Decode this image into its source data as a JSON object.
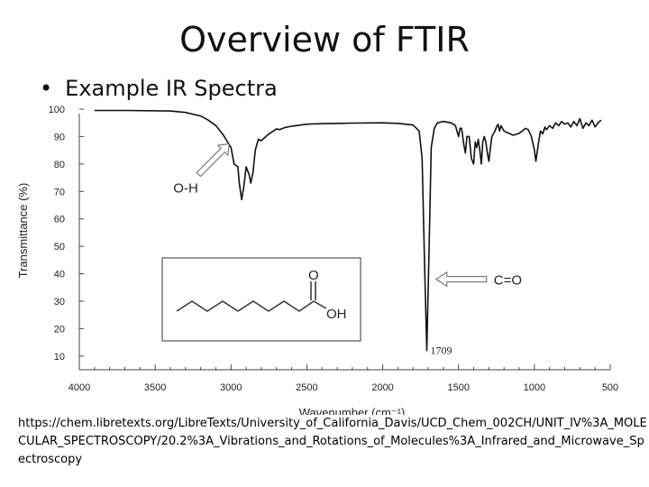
{
  "slide": {
    "title": "Overview of FTIR",
    "bullet": "Example IR Spectra",
    "source_url": "https://chem.libretexts.org/LibreTexts/University_of_California_Davis/UCD_Chem_002CH/UNIT_IV%3A_MOLECULAR_SPECTROSCOPY/20.2%3A_Vibrations_and_Rotations_of_Molecules%3A_Infrared_and_Microwave_Spectroscopy"
  },
  "chart_data": {
    "type": "line",
    "title": "",
    "xlabel": "Wavenumber (cm⁻¹)",
    "ylabel": "Transmittance (%)",
    "xlim": [
      4000,
      500
    ],
    "ylim": [
      5,
      100
    ],
    "x_reversed": true,
    "grid": false,
    "xticks": [
      4000,
      3500,
      3000,
      2500,
      2000,
      1500,
      1000,
      500
    ],
    "yticks": [
      100,
      90,
      80,
      70,
      60,
      50,
      40,
      30,
      20,
      10
    ],
    "series": [
      {
        "x": [
          3900,
          3700,
          3400,
          3300,
          3200,
          3150,
          3100,
          3050,
          3000,
          2980,
          2955,
          2945,
          2930,
          2915,
          2900,
          2880,
          2870,
          2855,
          2840,
          2820,
          2800,
          2750,
          2700,
          2680,
          2650,
          2600,
          2500,
          2400,
          2200,
          2000,
          1900,
          1800,
          1760,
          1740,
          1725,
          1709,
          1695,
          1680,
          1660,
          1640,
          1600,
          1550,
          1520,
          1500,
          1490,
          1480,
          1465,
          1455,
          1445,
          1430,
          1415,
          1400,
          1390,
          1380,
          1370,
          1360,
          1350,
          1340,
          1330,
          1320,
          1310,
          1300,
          1290,
          1280,
          1270,
          1260,
          1250,
          1240,
          1230,
          1220,
          1210,
          1200,
          1180,
          1160,
          1140,
          1120,
          1100,
          1080,
          1060,
          1040,
          1020,
          1000,
          990,
          975,
          960,
          945,
          930,
          920,
          900,
          880,
          860,
          840,
          820,
          800,
          780,
          760,
          740,
          720,
          700,
          680,
          660,
          640,
          620,
          600,
          580,
          560
        ],
        "y": [
          99.5,
          99.5,
          99.3,
          98.8,
          97.5,
          96.0,
          94.0,
          90.5,
          86.0,
          80.0,
          79.0,
          73.0,
          67.0,
          72.0,
          79.0,
          76.0,
          73.0,
          77.0,
          85.0,
          89.0,
          88.5,
          91.0,
          92.8,
          92.5,
          93.2,
          93.8,
          94.5,
          94.7,
          94.9,
          95.0,
          94.8,
          94.2,
          92.0,
          82.0,
          45.0,
          12.0,
          47.0,
          86.0,
          93.0,
          95.0,
          95.5,
          95.0,
          94.0,
          90.0,
          93.0,
          93.0,
          87.0,
          84.0,
          90.0,
          90.0,
          82.0,
          80.0,
          88.0,
          86.0,
          89.0,
          85.0,
          80.0,
          88.0,
          90.0,
          88.0,
          84.0,
          81.0,
          86.0,
          90.0,
          91.0,
          92.0,
          93.5,
          94.5,
          92.0,
          94.0,
          93.0,
          92.0,
          91.5,
          91.0,
          90.5,
          90.8,
          91.2,
          92.0,
          93.0,
          92.5,
          90.0,
          85.0,
          81.0,
          87.0,
          92.0,
          91.0,
          93.5,
          92.5,
          94.0,
          93.0,
          95.0,
          94.0,
          95.5,
          94.5,
          95.0,
          93.5,
          95.5,
          94.0,
          96.5,
          93.0,
          95.0,
          94.0,
          96.0,
          93.5,
          95.0,
          96.0
        ]
      }
    ],
    "annotations": [
      {
        "text": "O-H",
        "kind": "arrow-label",
        "at_x": 3000,
        "at_y": 88
      },
      {
        "text": "C=O",
        "kind": "arrow-label",
        "at_x": 1660,
        "at_y": 38
      },
      {
        "text": "1709",
        "kind": "peak-label",
        "at_x": 1709,
        "at_y": 12
      }
    ],
    "inset": {
      "description": "skeletal formula of octanoic acid",
      "labels": [
        "O",
        "OH"
      ]
    }
  }
}
